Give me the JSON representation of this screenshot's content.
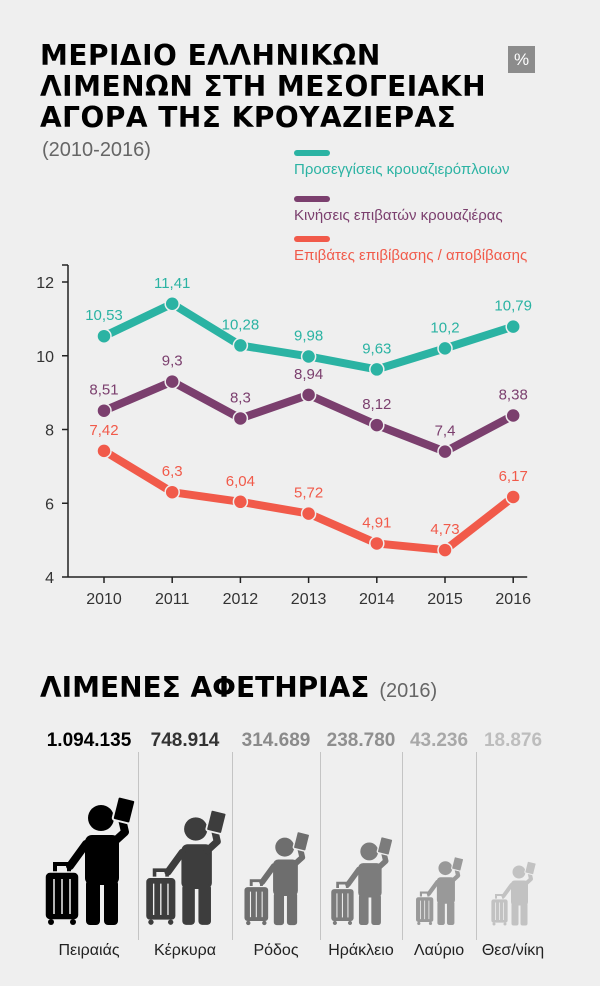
{
  "title_lines": [
    "ΜΕΡΙΔΙΟ ΕΛΛΗΝΙΚΩΝ",
    "ΛΙΜΕΝΩΝ ΣΤΗ ΜΕΣΟΓΕΙΑΚΗ",
    "ΑΓΟΡΑ ΤΗΣ ΚΡΟΥΑΖΙΕΡΑΣ"
  ],
  "subtitle": "(2010-2016)",
  "unit_badge": "%",
  "chart_data": {
    "type": "line",
    "title": "ΜΕΡΙΔΙΟ ΕΛΛΗΝΙΚΩΝ ΛΙΜΕΝΩΝ ΣΤΗ ΜΕΣΟΓΕΙΑΚΗ ΑΓΟΡΑ ΤΗΣ ΚΡΟΥΑΖΙΕΡΑΣ",
    "subtitle": "(2010-2016)",
    "ylabel": "%",
    "x": [
      "2010",
      "2011",
      "2012",
      "2013",
      "2014",
      "2015",
      "2016"
    ],
    "yticks": [
      "4",
      "6",
      "8",
      "10",
      "12"
    ],
    "ylim": [
      4,
      12
    ],
    "grid": false,
    "legend_position": "top-right",
    "series": [
      {
        "name": "Προσεγγίσεις κρουαζιερόπλοιων",
        "color": "#2bb3a3",
        "values": [
          10.53,
          11.41,
          10.28,
          9.98,
          9.63,
          10.2,
          10.79
        ],
        "labels": [
          "10,53",
          "11,41",
          "10,28",
          "9,98",
          "9,63",
          "10,2",
          "10,79"
        ]
      },
      {
        "name": "Κινήσεις επιβατών κρουαζιέρας",
        "color": "#7b3f6e",
        "values": [
          8.51,
          9.3,
          8.3,
          8.94,
          8.12,
          7.4,
          8.38
        ],
        "labels": [
          "8,51",
          "9,3",
          "8,3",
          "8,94",
          "8,12",
          "7,4",
          "8,38"
        ]
      },
      {
        "name": "Επιβάτες επιβίβασης / αποβίβασης",
        "color": "#f15a4a",
        "values": [
          7.42,
          6.3,
          6.04,
          5.72,
          4.91,
          4.73,
          6.17
        ],
        "labels": [
          "7,42",
          "6,3",
          "6,04",
          "5,72",
          "4,91",
          "4,73",
          "6,17"
        ]
      }
    ]
  },
  "ports_section": {
    "title": "ΛΙΜΕΝΕΣ ΑΦΕΤΗΡΙΑΣ",
    "year": "(2016)",
    "ports": [
      {
        "name": "Πειραιάς",
        "count": "1.094.135",
        "value": 1094135,
        "color": "#000000",
        "count_color": "#000000"
      },
      {
        "name": "Κέρκυρα",
        "count": "748.914",
        "value": 748914,
        "color": "#3d3d3d",
        "count_color": "#333333"
      },
      {
        "name": "Ρόδος",
        "count": "314.689",
        "value": 314689,
        "color": "#6e6e6e",
        "count_color": "#8a8a8a"
      },
      {
        "name": "Ηράκλειο",
        "count": "238.780",
        "value": 238780,
        "color": "#7c7c7c",
        "count_color": "#8f8f8f"
      },
      {
        "name": "Λαύριο",
        "count": "43.236",
        "value": 43236,
        "color": "#999999",
        "count_color": "#a8a8a8"
      },
      {
        "name": "Θεσ/νίκη",
        "count": "18.876",
        "value": 18876,
        "color": "#c2c2c2",
        "count_color": "#bdbdbd"
      }
    ]
  }
}
